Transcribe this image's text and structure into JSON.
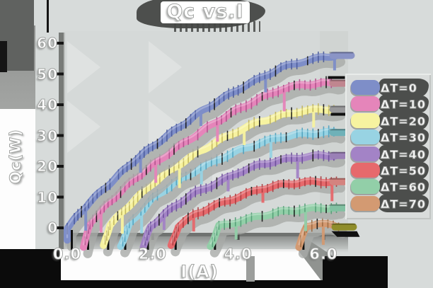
{
  "title": "Qc vs.I",
  "chart_data": {
    "type": "line",
    "title": "Qc vs.I",
    "xlabel": "I(A)",
    "ylabel": "Qc(W)",
    "xlim": [
      -0.1,
      6.6
    ],
    "ylim": [
      -6,
      62
    ],
    "grid": false,
    "legend_position": "right",
    "xticks": [
      0.0,
      2.0,
      4.0,
      6.0
    ],
    "xtick_labels": [
      "0.0",
      "2.0",
      "4.0",
      "6.0"
    ],
    "yticks": [
      0,
      10,
      20,
      30,
      40,
      50,
      60
    ],
    "ytick_labels": [
      "0",
      "10",
      "20",
      "30",
      "40",
      "50",
      "60"
    ],
    "series": [
      {
        "name": "ΔT=0",
        "color": "#7e8ec8",
        "tick_color": "#49599b",
        "tail_color": "#8a94c6",
        "points": [
          [
            0,
            -4
          ],
          [
            0,
            0
          ],
          [
            0.5,
            8
          ],
          [
            1,
            14.5
          ],
          [
            1.5,
            21
          ],
          [
            2,
            26.5
          ],
          [
            2.5,
            31.5
          ],
          [
            3,
            36.5
          ],
          [
            3.5,
            41
          ],
          [
            4,
            45
          ],
          [
            4.5,
            48.5
          ],
          [
            5,
            52
          ],
          [
            5.5,
            54
          ],
          [
            6,
            55.5
          ],
          [
            6.3,
            56
          ]
        ]
      },
      {
        "name": "ΔT=10",
        "color": "#e585ba",
        "tick_color": "#b04f8c",
        "tail_color": "#c0868f",
        "points": [
          [
            0.38,
            -6
          ],
          [
            0.55,
            2
          ],
          [
            1,
            8.5
          ],
          [
            1.5,
            15
          ],
          [
            2,
            20.5
          ],
          [
            2.5,
            25.5
          ],
          [
            3,
            30
          ],
          [
            3.5,
            34.5
          ],
          [
            4,
            38.5
          ],
          [
            4.5,
            42
          ],
          [
            5,
            45
          ],
          [
            5.5,
            46.5
          ],
          [
            6,
            47
          ],
          [
            6.3,
            47
          ]
        ]
      },
      {
        "name": "ΔT=20",
        "color": "#f7f3a0",
        "tick_color": "#bfb45c",
        "tail_color": "#98989a",
        "points": [
          [
            0.85,
            -6
          ],
          [
            1,
            1
          ],
          [
            1.5,
            8
          ],
          [
            2,
            14.5
          ],
          [
            2.5,
            19.5
          ],
          [
            3,
            24
          ],
          [
            3.5,
            28
          ],
          [
            4,
            31.5
          ],
          [
            4.5,
            34.5
          ],
          [
            5,
            36.5
          ],
          [
            5.5,
            38
          ],
          [
            6,
            38.5
          ],
          [
            6.3,
            38.5
          ]
        ]
      },
      {
        "name": "ΔT=30",
        "color": "#98d3e3",
        "tick_color": "#4fa2bf",
        "tail_color": "#6fb1b8",
        "points": [
          [
            1.25,
            -6
          ],
          [
            1.45,
            1
          ],
          [
            2,
            9.5
          ],
          [
            2.5,
            14.5
          ],
          [
            3,
            18.5
          ],
          [
            3.5,
            22
          ],
          [
            4,
            25
          ],
          [
            4.5,
            27.5
          ],
          [
            5,
            29.5
          ],
          [
            5.5,
            30.5
          ],
          [
            6,
            31
          ],
          [
            6.3,
            31
          ]
        ]
      },
      {
        "name": "ΔT=40",
        "color": "#a383c6",
        "tick_color": "#6a4d99",
        "tail_color": "#9a80b6",
        "points": [
          [
            1.78,
            -6
          ],
          [
            1.95,
            0.5
          ],
          [
            2.5,
            7
          ],
          [
            3,
            11.5
          ],
          [
            3.5,
            14.5
          ],
          [
            4,
            18
          ],
          [
            4.5,
            20.5
          ],
          [
            5,
            22
          ],
          [
            5.5,
            23
          ],
          [
            6,
            23.5
          ],
          [
            6.3,
            23.5
          ]
        ]
      },
      {
        "name": "ΔT=50",
        "color": "#e6696c",
        "tick_color": "#aa3a3e",
        "tail_color": "#d4837f",
        "points": [
          [
            2.43,
            -6
          ],
          [
            2.6,
            0.5
          ],
          [
            3,
            4.5
          ],
          [
            3.5,
            7.5
          ],
          [
            4,
            10
          ],
          [
            4.5,
            12.5
          ],
          [
            5,
            14
          ],
          [
            5.5,
            14.8
          ],
          [
            6,
            15
          ],
          [
            6.3,
            15
          ]
        ]
      },
      {
        "name": "ΔT=60",
        "color": "#92cfa8",
        "tick_color": "#539e76",
        "tail_color": "#82c1a2",
        "points": [
          [
            3.35,
            -6
          ],
          [
            3.55,
            0.5
          ],
          [
            4,
            2
          ],
          [
            4.5,
            3.8
          ],
          [
            5,
            5.2
          ],
          [
            5.5,
            6
          ],
          [
            6,
            6.5
          ],
          [
            6.3,
            6.5
          ]
        ]
      },
      {
        "name": "ΔT=70",
        "color": "#d39a72",
        "tick_color": "#9b6940",
        "tail_color": "#8f8d2a",
        "points": [
          [
            5.42,
            -6
          ],
          [
            5.6,
            0.5
          ],
          [
            5.85,
            1.5
          ],
          [
            6.1,
            1
          ],
          [
            6.35,
            0.3
          ]
        ]
      }
    ]
  }
}
